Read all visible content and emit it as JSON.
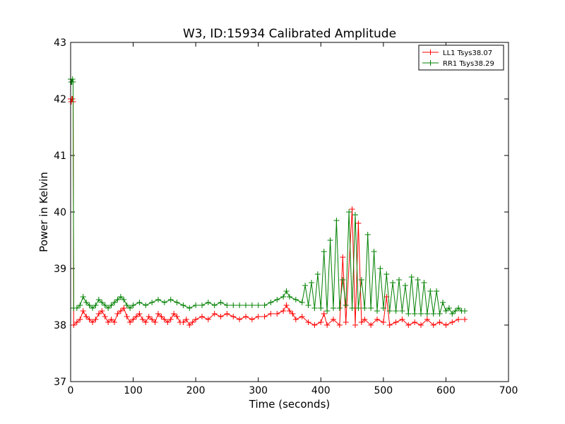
{
  "chart_data": {
    "type": "line",
    "title": "W3, ID:15934 Calibrated Amplitude",
    "xlabel": "Time (seconds)",
    "ylabel": "Power in Kelvin",
    "xlim": [
      0,
      700
    ],
    "ylim": [
      37,
      43
    ],
    "xticks": [
      0,
      100,
      200,
      300,
      400,
      500,
      600,
      700
    ],
    "yticks": [
      37,
      38,
      39,
      40,
      41,
      42,
      43
    ],
    "grid": false,
    "legend_position": "top-right",
    "series": [
      {
        "name": "LL1 Tsys38.07",
        "color": "#ff0000",
        "marker": "+",
        "x": [
          0,
          1,
          2,
          3,
          4,
          5,
          10,
          15,
          20,
          25,
          30,
          35,
          40,
          45,
          50,
          55,
          60,
          65,
          70,
          75,
          80,
          85,
          90,
          95,
          100,
          105,
          110,
          115,
          120,
          125,
          130,
          135,
          140,
          145,
          150,
          155,
          160,
          165,
          170,
          175,
          180,
          185,
          190,
          195,
          200,
          210,
          220,
          230,
          240,
          250,
          260,
          270,
          280,
          290,
          300,
          310,
          320,
          330,
          340,
          345,
          350,
          355,
          360,
          370,
          380,
          390,
          400,
          405,
          410,
          420,
          430,
          435,
          440,
          450,
          455,
          460,
          465,
          470,
          480,
          490,
          500,
          505,
          510,
          520,
          530,
          540,
          550,
          560,
          570,
          580,
          590,
          600,
          610,
          620,
          630
        ],
        "y": [
          42.0,
          41.95,
          42.0,
          42.0,
          41.95,
          38.0,
          38.05,
          38.1,
          38.25,
          38.15,
          38.1,
          38.05,
          38.1,
          38.2,
          38.25,
          38.15,
          38.05,
          38.1,
          38.05,
          38.2,
          38.25,
          38.3,
          38.15,
          38.05,
          38.1,
          38.15,
          38.2,
          38.1,
          38.05,
          38.15,
          38.1,
          38.05,
          38.2,
          38.15,
          38.1,
          38.05,
          38.1,
          38.2,
          38.15,
          38.05,
          38.05,
          38.1,
          38.0,
          38.05,
          38.1,
          38.15,
          38.1,
          38.2,
          38.15,
          38.2,
          38.15,
          38.1,
          38.15,
          38.1,
          38.15,
          38.15,
          38.2,
          38.2,
          38.25,
          38.35,
          38.25,
          38.2,
          38.1,
          38.15,
          38.05,
          38.0,
          38.05,
          38.2,
          38.0,
          38.1,
          38.0,
          39.2,
          38.05,
          40.05,
          38.0,
          39.8,
          38.05,
          38.1,
          38.0,
          38.1,
          38.05,
          38.5,
          38.0,
          38.05,
          38.1,
          38.0,
          38.05,
          38.0,
          38.1,
          38.0,
          38.05,
          38.0,
          38.05,
          38.1,
          38.1
        ]
      },
      {
        "name": "RR1 Tsys38.29",
        "color": "#008000",
        "marker": "+",
        "x": [
          0,
          1,
          2,
          3,
          4,
          5,
          10,
          15,
          20,
          25,
          30,
          35,
          40,
          45,
          50,
          55,
          60,
          65,
          70,
          75,
          80,
          85,
          90,
          95,
          100,
          110,
          120,
          130,
          140,
          150,
          160,
          170,
          180,
          190,
          200,
          210,
          220,
          230,
          240,
          250,
          260,
          270,
          280,
          290,
          300,
          310,
          320,
          330,
          340,
          345,
          350,
          360,
          370,
          375,
          380,
          385,
          390,
          395,
          400,
          405,
          410,
          415,
          420,
          425,
          430,
          435,
          440,
          445,
          450,
          455,
          460,
          465,
          470,
          475,
          480,
          485,
          490,
          495,
          500,
          505,
          510,
          515,
          520,
          525,
          530,
          535,
          540,
          545,
          550,
          555,
          560,
          565,
          570,
          575,
          580,
          585,
          590,
          595,
          600,
          605,
          610,
          615,
          620,
          625,
          630
        ],
        "y": [
          42.35,
          42.3,
          42.3,
          42.35,
          42.3,
          38.3,
          38.3,
          38.35,
          38.5,
          38.4,
          38.35,
          38.3,
          38.35,
          38.45,
          38.4,
          38.35,
          38.3,
          38.35,
          38.4,
          38.45,
          38.5,
          38.45,
          38.35,
          38.3,
          38.35,
          38.4,
          38.35,
          38.4,
          38.45,
          38.4,
          38.45,
          38.4,
          38.35,
          38.3,
          38.35,
          38.35,
          38.4,
          38.35,
          38.4,
          38.35,
          38.35,
          38.35,
          38.35,
          38.35,
          38.35,
          38.35,
          38.4,
          38.45,
          38.5,
          38.6,
          38.5,
          38.45,
          38.4,
          38.7,
          38.35,
          38.75,
          38.3,
          38.9,
          38.3,
          39.3,
          38.25,
          39.5,
          38.3,
          39.85,
          38.3,
          38.8,
          38.35,
          40.0,
          38.3,
          39.95,
          38.3,
          38.8,
          38.3,
          39.6,
          38.3,
          39.3,
          38.25,
          39.0,
          38.3,
          38.9,
          38.25,
          38.75,
          38.25,
          38.8,
          38.25,
          38.7,
          38.2,
          38.85,
          38.2,
          38.8,
          38.2,
          38.75,
          38.2,
          38.6,
          38.2,
          38.6,
          38.2,
          38.4,
          38.25,
          38.3,
          38.2,
          38.25,
          38.3,
          38.25,
          38.25
        ]
      }
    ]
  }
}
